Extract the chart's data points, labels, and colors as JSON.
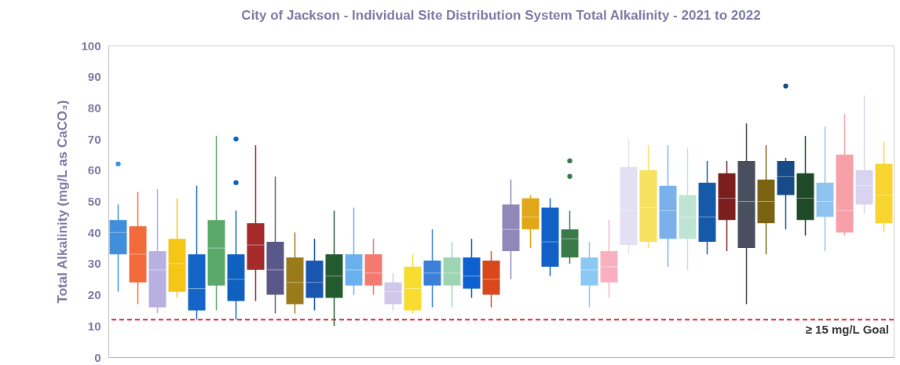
{
  "chart_data": {
    "type": "box",
    "title": "City of Jackson - Individual Site Distribution System Total Alkalinity - 2021 to 2022",
    "ylabel": "Total Alkalinity (mg/L as CaCO₃)",
    "categories": [
      null,
      null,
      null,
      null,
      null,
      null,
      null,
      null,
      null,
      null,
      null,
      null,
      null,
      null,
      null,
      null,
      null,
      null,
      null,
      null,
      null,
      null,
      null,
      null,
      null,
      null,
      null,
      null,
      null,
      null,
      null,
      null,
      null,
      null,
      null,
      null,
      null,
      null,
      null,
      null
    ],
    "colors": [
      "#3f8fdc",
      "#f26b3a",
      "#b8b0e0",
      "#f5c518",
      "#1565c8",
      "#5aa86a",
      "#1060c0",
      "#a52a2a",
      "#5a5888",
      "#9a7a1a",
      "#1856b0",
      "#245a30",
      "#6ab0ec",
      "#f47a70",
      "#cfc8ea",
      "#f8dc30",
      "#3a80d8",
      "#9cd4b4",
      "#0e60d0",
      "#d8481c",
      "#9088b8",
      "#e0a818",
      "#1060c8",
      "#3a7a48",
      "#8cc8f4",
      "#f8b0c0",
      "#e4e0f4",
      "#f8e060",
      "#7ab0ec",
      "#c0e4d4",
      "#145aa8",
      "#7a1e1e",
      "#4a4e5e",
      "#7a6414",
      "#184a88",
      "#1e4a28",
      "#90c4f0",
      "#f8a0a8",
      "#d8d4f0",
      "#f8d430"
    ],
    "boxes": [
      {
        "low": 21,
        "q1": 33,
        "median": 40,
        "q3": 44,
        "high": 49,
        "outliers": [
          62
        ]
      },
      {
        "low": 17,
        "q1": 24,
        "median": 33,
        "q3": 42,
        "high": 53
      },
      {
        "low": 14,
        "q1": 16,
        "median": 28,
        "q3": 34,
        "high": 54
      },
      {
        "low": 19,
        "q1": 21,
        "median": 30,
        "q3": 38,
        "high": 51
      },
      {
        "low": 12,
        "q1": 15,
        "median": 22,
        "q3": 33,
        "high": 55
      },
      {
        "low": 15,
        "q1": 23,
        "median": 35,
        "q3": 44,
        "high": 71
      },
      {
        "low": 12,
        "q1": 18,
        "median": 25,
        "q3": 33,
        "high": 47,
        "outliers": [
          70,
          56
        ]
      },
      {
        "low": 18,
        "q1": 28,
        "median": 36,
        "q3": 43,
        "high": 68
      },
      {
        "low": 14,
        "q1": 20,
        "median": 28,
        "q3": 37,
        "high": 58
      },
      {
        "low": 14,
        "q1": 17,
        "median": 24,
        "q3": 32,
        "high": 40
      },
      {
        "low": 15,
        "q1": 19,
        "median": 24,
        "q3": 31,
        "high": 38
      },
      {
        "low": 10,
        "q1": 19,
        "median": 26,
        "q3": 33,
        "high": 47
      },
      {
        "low": 20,
        "q1": 23,
        "median": 28,
        "q3": 33,
        "high": 48
      },
      {
        "low": 20,
        "q1": 23,
        "median": 27,
        "q3": 33,
        "high": 38
      },
      {
        "low": 15,
        "q1": 17,
        "median": 21,
        "q3": 24,
        "high": 27
      },
      {
        "low": 14,
        "q1": 15,
        "median": 22,
        "q3": 29,
        "high": 33
      },
      {
        "low": 16,
        "q1": 23,
        "median": 27,
        "q3": 31,
        "high": 41
      },
      {
        "low": 16,
        "q1": 23,
        "median": 27,
        "q3": 32,
        "high": 37
      },
      {
        "low": 19,
        "q1": 22,
        "median": 26,
        "q3": 32,
        "high": 38
      },
      {
        "low": 16,
        "q1": 20,
        "median": 25,
        "q3": 31,
        "high": 34
      },
      {
        "low": 25,
        "q1": 34,
        "median": 41,
        "q3": 49,
        "high": 57
      },
      {
        "low": 35,
        "q1": 41,
        "median": 45,
        "q3": 51,
        "high": 52
      },
      {
        "low": 26,
        "q1": 29,
        "median": 37,
        "q3": 48,
        "high": 51
      },
      {
        "low": 30,
        "q1": 32,
        "median": 38,
        "q3": 41,
        "high": 47,
        "outliers": [
          63,
          58
        ]
      },
      {
        "low": 16,
        "q1": 23,
        "median": 28,
        "q3": 32,
        "high": 37
      },
      {
        "low": 19,
        "q1": 24,
        "median": 29,
        "q3": 34,
        "high": 44
      },
      {
        "low": 33,
        "q1": 36,
        "median": 47,
        "q3": 61,
        "high": 70
      },
      {
        "low": 35,
        "q1": 37,
        "median": 48,
        "q3": 60,
        "high": 68
      },
      {
        "low": 29,
        "q1": 38,
        "median": 47,
        "q3": 55,
        "high": 68
      },
      {
        "low": 28,
        "q1": 38,
        "median": 45,
        "q3": 52,
        "high": 67
      },
      {
        "low": 33,
        "q1": 37,
        "median": 45,
        "q3": 56,
        "high": 63
      },
      {
        "low": 34,
        "q1": 44,
        "median": 51,
        "q3": 59,
        "high": 63
      },
      {
        "low": 17,
        "q1": 35,
        "median": 50,
        "q3": 63,
        "high": 75
      },
      {
        "low": 33,
        "q1": 43,
        "median": 50,
        "q3": 57,
        "high": 68
      },
      {
        "low": 41,
        "q1": 52,
        "median": 58,
        "q3": 63,
        "high": 64,
        "outliers": [
          87
        ]
      },
      {
        "low": 39,
        "q1": 44,
        "median": 51,
        "q3": 59,
        "high": 71
      },
      {
        "low": 34,
        "q1": 45,
        "median": 50,
        "q3": 56,
        "high": 74
      },
      {
        "low": 39,
        "q1": 40,
        "median": 47,
        "q3": 65,
        "high": 78
      },
      {
        "low": 46,
        "q1": 49,
        "median": 55,
        "q3": 60,
        "high": 84
      },
      {
        "low": 40,
        "q1": 43,
        "median": 52,
        "q3": 62,
        "high": 69
      }
    ],
    "ylim": [
      0,
      100
    ],
    "yticks": [
      0,
      10,
      20,
      30,
      40,
      50,
      60,
      70,
      80,
      90,
      100
    ],
    "ref_lines": [
      {
        "axis": "y",
        "value": 12,
        "label": "≥ 15 mg/L Goal",
        "color": "#e0202e",
        "line_style": "dashed"
      }
    ]
  }
}
